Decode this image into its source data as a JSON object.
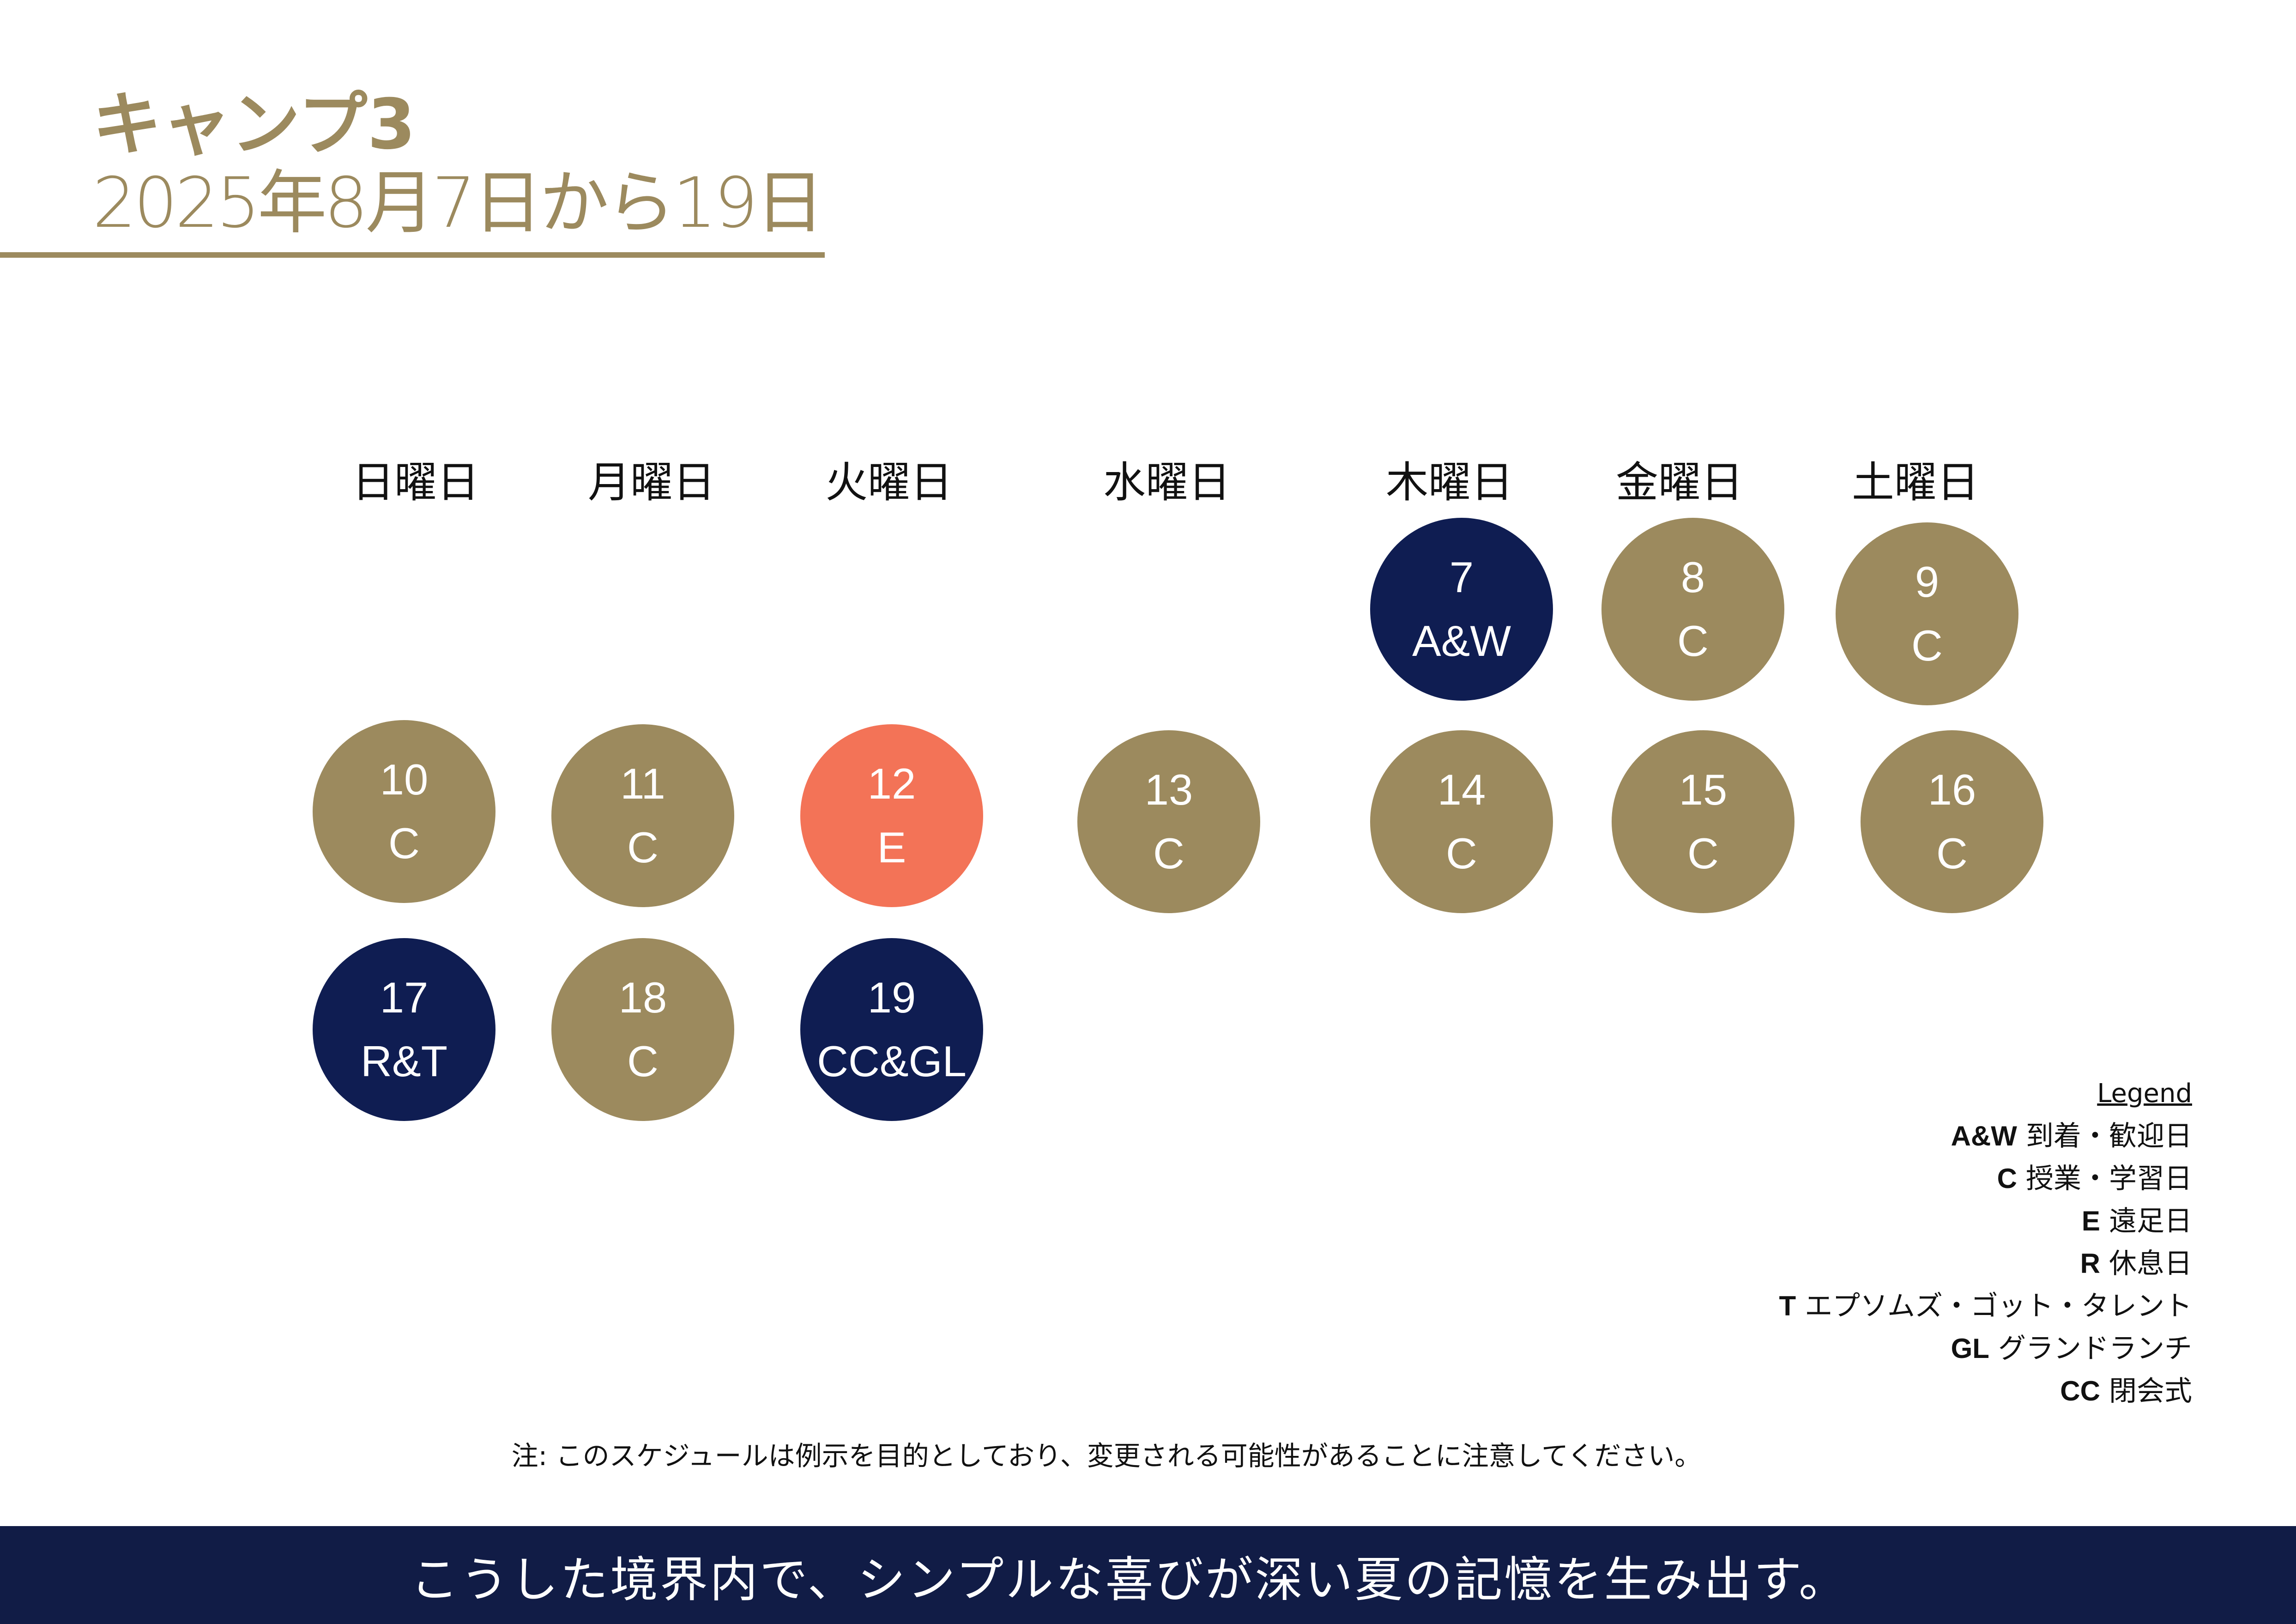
{
  "header": {
    "title": "キャンプ3",
    "subtitle": "2025年8月7日から19日"
  },
  "colors": {
    "gold": "#9c8a5e",
    "navy": "#0f1d52",
    "coral": "#f37357",
    "footer": "#111c46"
  },
  "weekdays": [
    "日曜日",
    "月曜日",
    "火曜日",
    "水曜日",
    "木曜日",
    "金曜日",
    "土曜日"
  ],
  "days": [
    {
      "day": "7",
      "code": "A&W",
      "color": "navy"
    },
    {
      "day": "8",
      "code": "C",
      "color": "gold"
    },
    {
      "day": "9",
      "code": "C",
      "color": "gold"
    },
    {
      "day": "10",
      "code": "C",
      "color": "gold"
    },
    {
      "day": "11",
      "code": "C",
      "color": "gold"
    },
    {
      "day": "12",
      "code": "E",
      "color": "coral"
    },
    {
      "day": "13",
      "code": "C",
      "color": "gold"
    },
    {
      "day": "14",
      "code": "C",
      "color": "gold"
    },
    {
      "day": "15",
      "code": "C",
      "color": "gold"
    },
    {
      "day": "16",
      "code": "C",
      "color": "gold"
    },
    {
      "day": "17",
      "code": "R&T",
      "color": "navy"
    },
    {
      "day": "18",
      "code": "C",
      "color": "gold"
    },
    {
      "day": "19",
      "code": "CC&GL",
      "color": "navy"
    }
  ],
  "legend": {
    "title": "Legend",
    "items": [
      {
        "code": "A&W",
        "label": "到着・歓迎日"
      },
      {
        "code": "C",
        "label": "授業・学習日"
      },
      {
        "code": "E",
        "label": "遠足日"
      },
      {
        "code": "R",
        "label": "休息日"
      },
      {
        "code": "T",
        "label": "エプソムズ・ゴット・タレント"
      },
      {
        "code": "GL",
        "label": "グランドランチ"
      },
      {
        "code": "CC",
        "label": "閉会式"
      }
    ]
  },
  "note": "注: このスケジュールは例示を目的としており、変更される可能性があることに注意してください。",
  "footer": "こうした境界内で、シンプルな喜びが深い夏の記憶を生み出す。"
}
